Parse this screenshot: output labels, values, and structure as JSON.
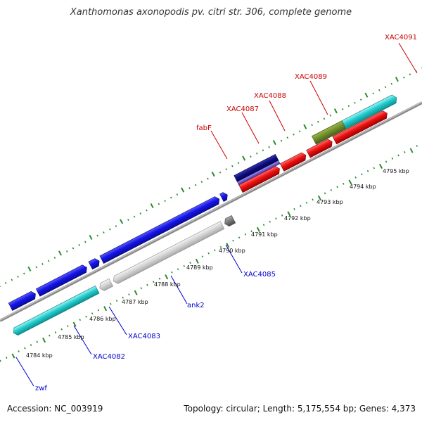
{
  "title": "Xanthomonas axonopodis pv. citri str. 306, complete genome",
  "accession_text": "Accession: NC_003919",
  "summary_text": "Topology: circular; Length: 5,175,554 bp; Genes: 4,373",
  "colors": {
    "backbone": "#8a8a8a",
    "tick_dots": "#2a8a2a",
    "forward_label": "#cc0000",
    "reverse_label": "#0000cc",
    "gene_red": "#ee1111",
    "gene_blue": "#1010dd",
    "gene_cyan": "#22cccc",
    "gene_olive": "#6e8b2a",
    "gene_navy": "#0b0b7a",
    "gene_purple": "#6a5acd",
    "gene_lightgray": "#d4d4d4",
    "gene_darkgray": "#777777"
  },
  "kbp_labels": [
    "4784 kbp",
    "4785 kbp",
    "4786 kbp",
    "4787 kbp",
    "4788 kbp",
    "4789 kbp",
    "4790 kbp",
    "4791 kbp",
    "4792 kbp",
    "4793 kbp",
    "4794 kbp",
    "4795 kbp"
  ],
  "forward_gene_labels": [
    "fabF",
    "XAC4087",
    "XAC4088",
    "XAC4089",
    "XAC4091"
  ],
  "reverse_gene_labels": [
    "zwf",
    "XAC4082",
    "XAC4083",
    "ank2",
    "XAC4085"
  ]
}
